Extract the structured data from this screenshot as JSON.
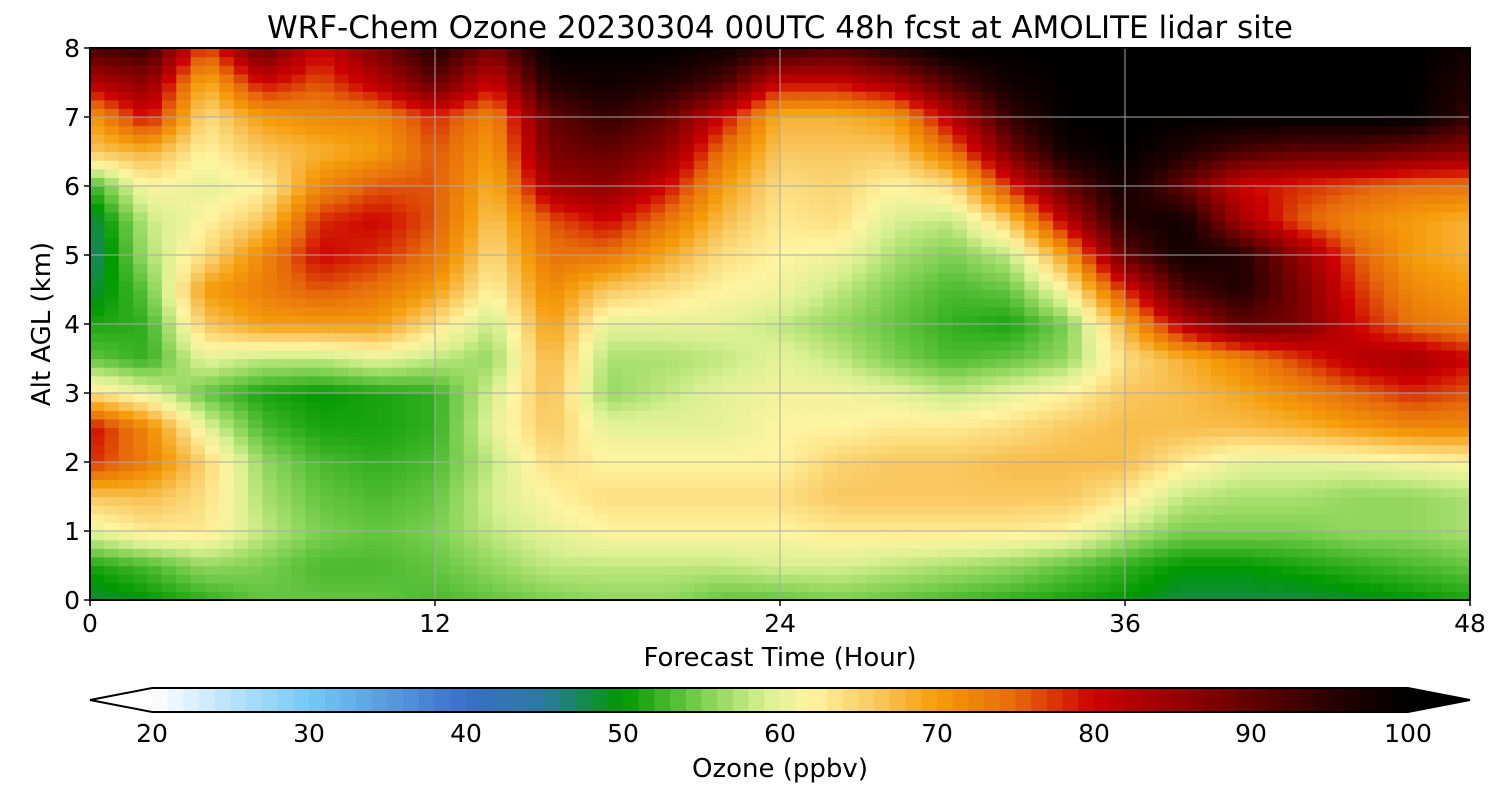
{
  "chart_data": {
    "type": "heatmap",
    "title": "WRF-Chem Ozone  20230304 00UTC 48h fcst at AMOLITE lidar site",
    "xlabel": "Forecast Time (Hour)",
    "ylabel": "Alt AGL (km)",
    "xlim": [
      0,
      48
    ],
    "ylim": [
      0,
      8
    ],
    "x_ticks": [
      0,
      12,
      24,
      36,
      48
    ],
    "y_ticks": [
      0,
      1,
      2,
      3,
      4,
      5,
      6,
      7,
      8
    ],
    "grid": true,
    "x_hours": [
      0,
      2,
      4,
      6,
      8,
      10,
      12,
      14,
      16,
      18,
      20,
      22,
      24,
      26,
      28,
      30,
      32,
      34,
      36,
      38,
      40,
      42,
      44,
      46,
      48
    ],
    "y_km": [
      0,
      0.5,
      1,
      1.5,
      2,
      2.5,
      3,
      3.5,
      4,
      4.5,
      5,
      5.5,
      6,
      6.5,
      7,
      7.5,
      8
    ],
    "z_ppbv": [
      [
        48,
        50,
        52,
        54,
        54,
        54,
        53,
        54,
        55,
        56,
        56,
        54,
        54,
        55,
        54,
        53,
        52,
        51,
        50,
        48,
        48,
        48,
        49,
        50,
        51
      ],
      [
        51,
        53,
        56,
        55,
        53,
        53,
        54,
        56,
        58,
        58,
        58,
        58,
        59,
        59,
        58,
        57,
        56,
        54,
        52,
        50,
        50,
        51,
        52,
        53,
        54
      ],
      [
        60,
        63,
        63,
        58,
        55,
        54,
        55,
        58,
        60,
        62,
        62,
        62,
        62,
        63,
        63,
        63,
        63,
        62,
        58,
        55,
        55,
        55,
        56,
        56,
        57
      ],
      [
        66,
        67,
        64,
        57,
        54,
        53,
        54,
        59,
        62,
        64,
        64,
        64,
        64,
        66,
        66,
        66,
        66,
        66,
        63,
        58,
        57,
        57,
        56,
        56,
        57
      ],
      [
        78,
        73,
        65,
        56,
        53,
        52,
        53,
        58,
        64,
        62,
        62,
        62,
        62,
        65,
        66,
        66,
        67,
        67,
        67,
        63,
        60,
        60,
        60,
        61,
        62
      ],
      [
        80,
        72,
        60,
        53,
        51,
        51,
        52,
        60,
        66,
        60,
        60,
        60,
        62,
        62,
        63,
        63,
        64,
        66,
        67,
        67,
        67,
        68,
        70,
        72,
        72
      ],
      [
        64,
        60,
        54,
        51,
        50,
        51,
        52,
        59,
        67,
        56,
        58,
        60,
        61,
        61,
        60,
        58,
        60,
        62,
        66,
        67,
        69,
        72,
        75,
        78,
        76
      ],
      [
        54,
        52,
        60,
        58,
        58,
        60,
        58,
        56,
        68,
        57,
        57,
        58,
        60,
        58,
        55,
        53,
        54,
        56,
        64,
        68,
        72,
        77,
        82,
        84,
        80
      ],
      [
        51,
        52,
        66,
        70,
        70,
        70,
        64,
        58,
        70,
        60,
        60,
        60,
        58,
        56,
        54,
        52,
        51,
        55,
        68,
        82,
        90,
        88,
        80,
        74,
        72
      ],
      [
        48,
        54,
        70,
        73,
        76,
        74,
        70,
        62,
        72,
        66,
        64,
        62,
        61,
        58,
        55,
        53,
        54,
        62,
        78,
        92,
        96,
        88,
        78,
        72,
        70
      ],
      [
        46,
        57,
        64,
        72,
        80,
        78,
        74,
        64,
        74,
        74,
        69,
        64,
        62,
        61,
        57,
        55,
        58,
        70,
        90,
        98,
        96,
        86,
        76,
        70,
        68
      ],
      [
        47,
        58,
        62,
        66,
        78,
        80,
        76,
        66,
        76,
        80,
        74,
        67,
        63,
        64,
        59,
        58,
        66,
        82,
        96,
        98,
        84,
        76,
        72,
        70,
        68
      ],
      [
        52,
        62,
        60,
        62,
        72,
        76,
        76,
        68,
        84,
        86,
        80,
        70,
        64,
        65,
        62,
        64,
        78,
        90,
        98,
        90,
        80,
        78,
        76,
        74,
        74
      ],
      [
        66,
        68,
        62,
        66,
        68,
        70,
        76,
        70,
        88,
        90,
        86,
        74,
        66,
        66,
        66,
        74,
        88,
        98,
        100,
        96,
        92,
        90,
        90,
        88,
        86
      ],
      [
        70,
        80,
        64,
        70,
        72,
        72,
        78,
        72,
        90,
        94,
        90,
        80,
        68,
        68,
        70,
        82,
        94,
        100,
        100,
        100,
        100,
        100,
        100,
        100,
        94
      ],
      [
        82,
        86,
        68,
        80,
        76,
        82,
        90,
        80,
        96,
        98,
        96,
        92,
        80,
        80,
        84,
        92,
        98,
        100,
        100,
        100,
        100,
        100,
        100,
        100,
        96
      ],
      [
        92,
        94,
        76,
        90,
        80,
        88,
        96,
        88,
        100,
        100,
        100,
        98,
        94,
        92,
        96,
        100,
        100,
        100,
        100,
        100,
        100,
        100,
        100,
        100,
        98
      ]
    ],
    "colorbar": {
      "label": "Ozone  (ppbv)",
      "min": 20,
      "max": 100,
      "ticks": [
        20,
        30,
        40,
        50,
        60,
        70,
        80,
        90,
        100
      ],
      "extend": "both",
      "stops": [
        {
          "value": 20,
          "color": "#ffffff"
        },
        {
          "value": 30,
          "color": "#75c8f5"
        },
        {
          "value": 40,
          "color": "#3a6fc8"
        },
        {
          "value": 45,
          "color": "#2a7aa0"
        },
        {
          "value": 50,
          "color": "#009900"
        },
        {
          "value": 55,
          "color": "#7ccf50"
        },
        {
          "value": 59,
          "color": "#d8f090"
        },
        {
          "value": 62,
          "color": "#fff4a0"
        },
        {
          "value": 66,
          "color": "#f9c860"
        },
        {
          "value": 70,
          "color": "#f59c0a"
        },
        {
          "value": 75,
          "color": "#e66a0a"
        },
        {
          "value": 80,
          "color": "#cc0000"
        },
        {
          "value": 88,
          "color": "#7a0000"
        },
        {
          "value": 95,
          "color": "#2a0000"
        },
        {
          "value": 100,
          "color": "#000000"
        }
      ]
    }
  }
}
